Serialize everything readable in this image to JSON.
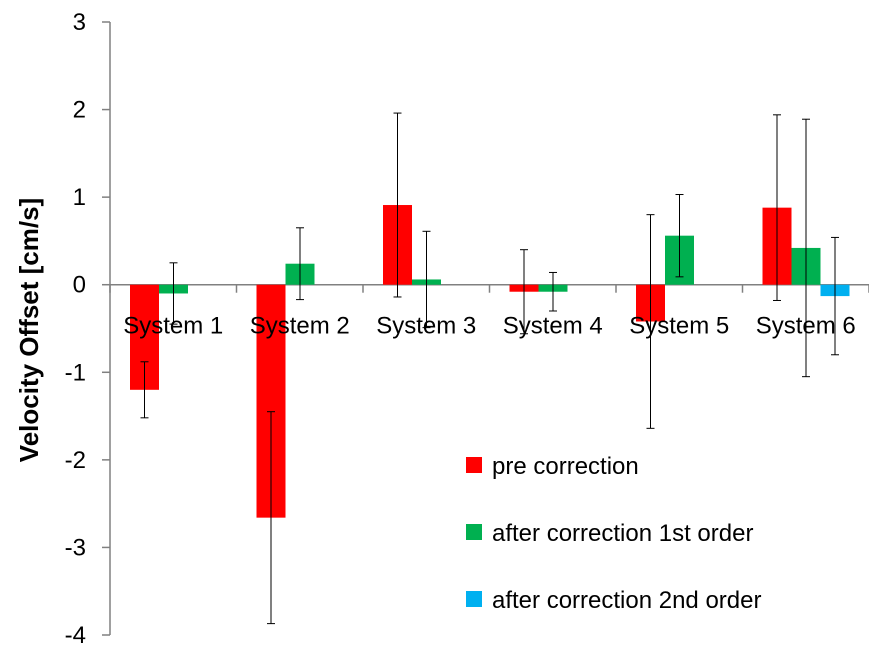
{
  "chart_data": {
    "type": "bar",
    "title": "",
    "xlabel": "",
    "ylabel": "Velocity Offset [cm/s]",
    "ylim": [
      -4,
      3
    ],
    "yticks": [
      3,
      2,
      1,
      0,
      -1,
      -2,
      -3,
      -4
    ],
    "grid": false,
    "legend_position": "bottom-right",
    "categories": [
      "System 1",
      "System 2",
      "System 3",
      "System 4",
      "System 5",
      "System 6"
    ],
    "series": [
      {
        "name": "pre correction",
        "color": "#ff0000",
        "values": [
          -1.2,
          -2.66,
          0.91,
          -0.08,
          -0.42,
          0.88
        ],
        "errors": [
          0.32,
          1.21,
          1.05,
          0.48,
          1.22,
          1.06
        ]
      },
      {
        "name": "after correction 1st order",
        "color": "#00b050",
        "values": [
          -0.1,
          0.24,
          0.06,
          -0.08,
          0.56,
          0.42
        ],
        "errors": [
          0.35,
          0.41,
          0.55,
          0.22,
          0.47,
          1.47
        ]
      },
      {
        "name": "after correction 2nd order",
        "color": "#00b0f0",
        "values": [
          null,
          null,
          null,
          null,
          null,
          -0.13
        ],
        "errors": [
          null,
          null,
          null,
          null,
          null,
          0.67
        ]
      }
    ]
  }
}
